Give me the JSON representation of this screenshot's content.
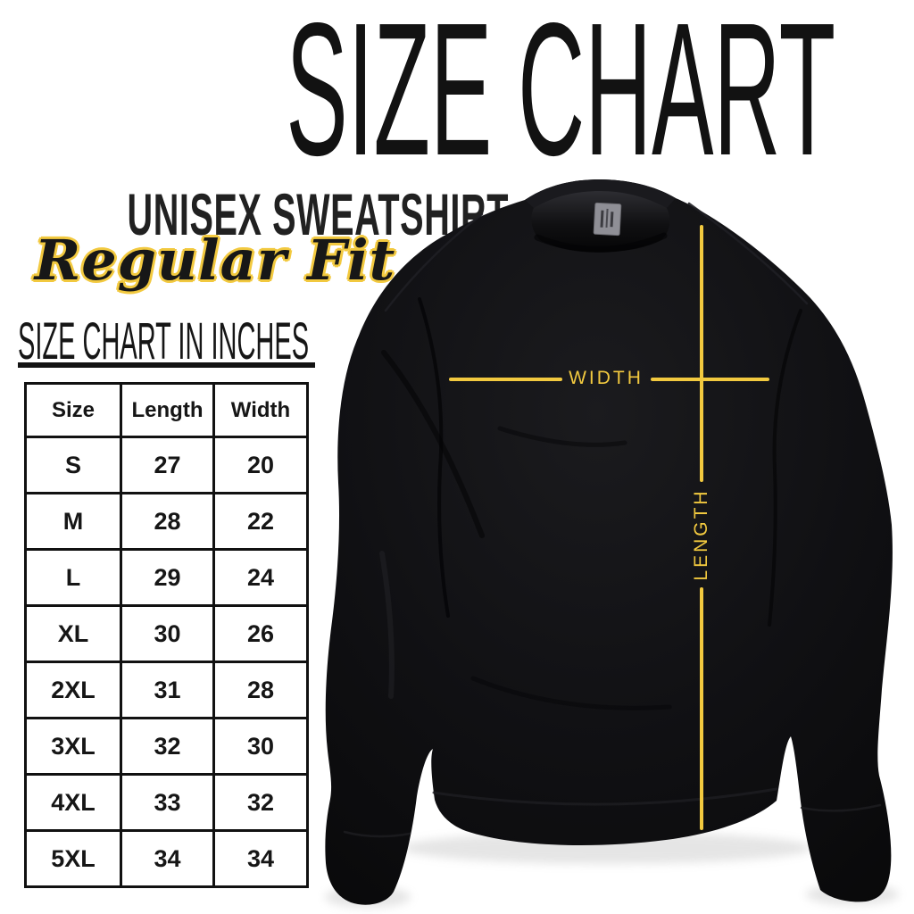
{
  "page_title": "SIZE CHART",
  "brand_block": {
    "line1": "UNISEX SWEATSHIRT",
    "line2": "Regular Fit"
  },
  "table_section": {
    "heading": "SIZE CHART IN INCHES"
  },
  "size_table": {
    "columns": [
      "Size",
      "Length",
      "Width"
    ],
    "rows": [
      [
        "S",
        "27",
        "20"
      ],
      [
        "M",
        "28",
        "22"
      ],
      [
        "L",
        "29",
        "24"
      ],
      [
        "XL",
        "30",
        "26"
      ],
      [
        "2XL",
        "31",
        "28"
      ],
      [
        "3XL",
        "32",
        "30"
      ],
      [
        "4XL",
        "33",
        "32"
      ],
      [
        "5XL",
        "34",
        "34"
      ]
    ]
  },
  "garment_diagram": {
    "width_label": "WIDTH",
    "length_label": "LENGTH"
  },
  "colors": {
    "accent_yellow": "#F2C93F",
    "ink": "#141414",
    "garment_black": "#0D0D0F",
    "background": "#FFFFFF"
  },
  "chart_data": {
    "type": "table",
    "title": "SIZE CHART IN INCHES",
    "units": "inches",
    "columns": [
      "Size",
      "Length",
      "Width"
    ],
    "rows": [
      [
        "S",
        27,
        20
      ],
      [
        "M",
        28,
        22
      ],
      [
        "L",
        29,
        24
      ],
      [
        "XL",
        30,
        26
      ],
      [
        "2XL",
        31,
        28
      ],
      [
        "3XL",
        32,
        30
      ],
      [
        "4XL",
        33,
        32
      ],
      [
        "5XL",
        34,
        34
      ]
    ]
  }
}
